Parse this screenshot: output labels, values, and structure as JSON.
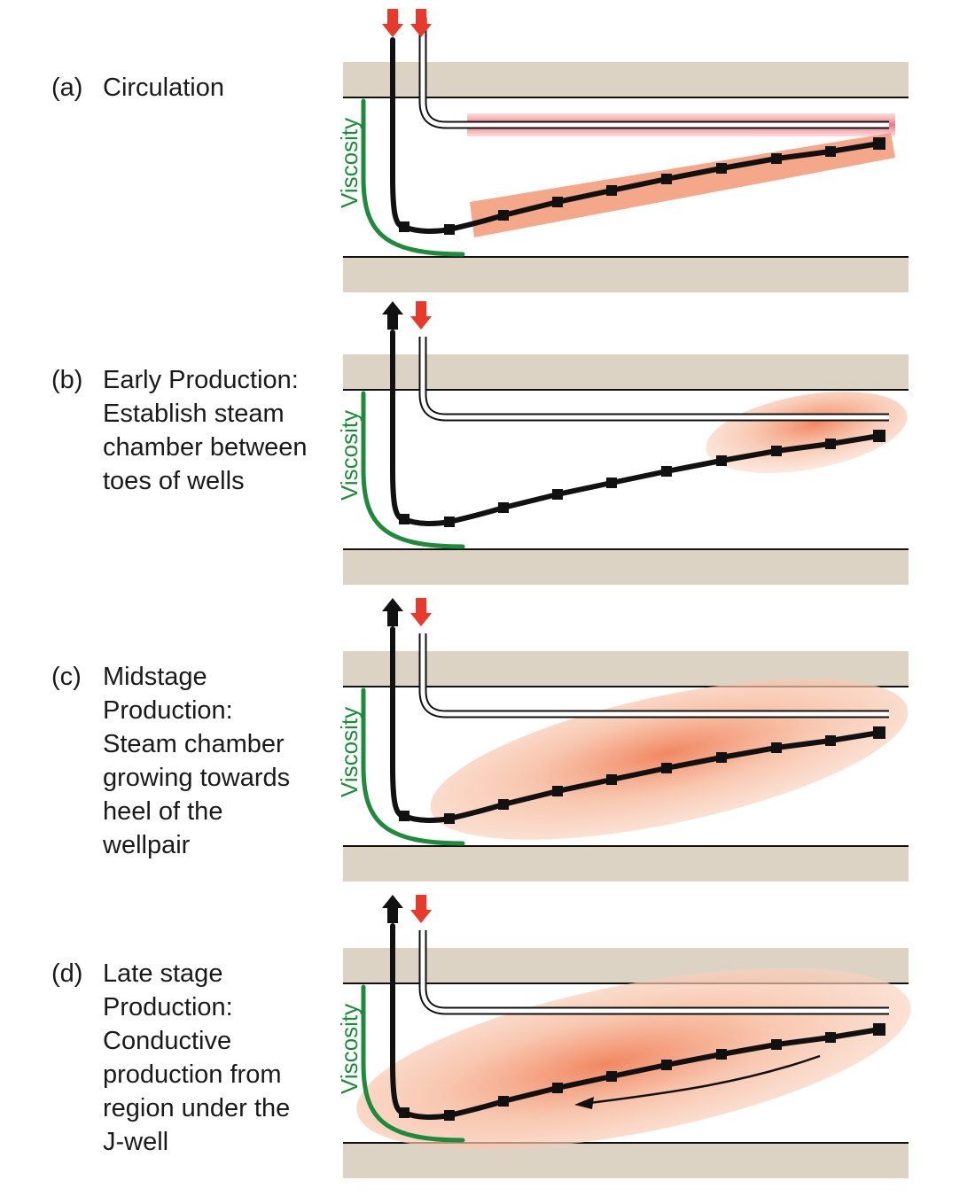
{
  "colors": {
    "rock": "#dcd3c5",
    "viscosity": "#1e8a3c",
    "injection_arrow": "#e8392a",
    "production_arrow": "#111111",
    "steam": "#f08a62"
  },
  "icons": {
    "injection": "arrow-down-icon",
    "production": "arrow-up-icon"
  },
  "panels": [
    {
      "tag": "(a)",
      "title": "Circulation",
      "viscosity_label": "Viscosity",
      "producer_arrow": "down",
      "steam_zone": "both-wells"
    },
    {
      "tag": "(b)",
      "title": "Early Production:\nEstablish steam\nchamber between\ntoes of wells",
      "viscosity_label": "Viscosity",
      "producer_arrow": "up",
      "steam_zone": "toe"
    },
    {
      "tag": "(c)",
      "title": "Midstage\nProduction:\nSteam chamber\ngrowing towards\nheel of the\nwellpair",
      "viscosity_label": "Viscosity",
      "producer_arrow": "up",
      "steam_zone": "mid"
    },
    {
      "tag": "(d)",
      "title": "Late stage\nProduction:\nConductive\nproduction from\nregion under the\nJ-well",
      "viscosity_label": "Viscosity",
      "producer_arrow": "up",
      "steam_zone": "full"
    }
  ]
}
